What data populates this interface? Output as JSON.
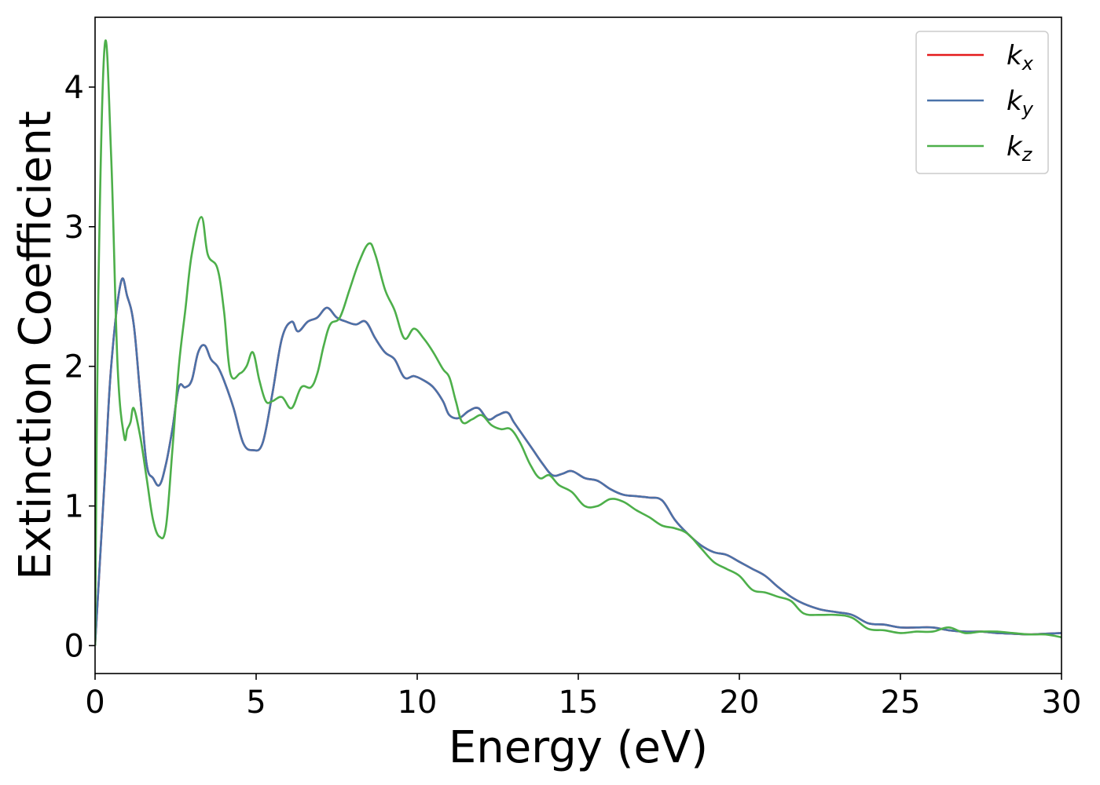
{
  "chart_data": {
    "type": "line",
    "title": "",
    "xlabel": "Energy (eV)",
    "ylabel": "Extinction Coefficient",
    "xlim": [
      0,
      30
    ],
    "ylim": [
      -0.2,
      4.5
    ],
    "xticks": [
      0,
      5,
      10,
      15,
      20,
      25,
      30
    ],
    "yticks": [
      0,
      1,
      2,
      3,
      4
    ],
    "grid": false,
    "legend_position": "top-right",
    "series": [
      {
        "name": "kx",
        "label_main": "k",
        "label_sub": "x",
        "color": "#e41a1c",
        "x": [
          0,
          0.3,
          0.5,
          0.8,
          1.0,
          1.2,
          1.4,
          1.6,
          1.8,
          2.0,
          2.2,
          2.4,
          2.6,
          2.8,
          3.0,
          3.2,
          3.4,
          3.6,
          3.8,
          4.0,
          4.3,
          4.6,
          4.9,
          5.2,
          5.5,
          5.8,
          6.1,
          6.3,
          6.6,
          6.9,
          7.2,
          7.5,
          7.8,
          8.1,
          8.4,
          8.7,
          9.0,
          9.3,
          9.6,
          9.9,
          10.2,
          10.5,
          10.8,
          11.0,
          11.3,
          11.6,
          11.9,
          12.2,
          12.5,
          12.8,
          13.0,
          13.3,
          13.6,
          13.9,
          14.2,
          14.5,
          14.8,
          15.2,
          15.6,
          16.0,
          16.4,
          16.8,
          17.2,
          17.6,
          18.0,
          18.4,
          18.8,
          19.2,
          19.6,
          20.0,
          20.4,
          20.8,
          21.2,
          21.6,
          22.0,
          22.5,
          23.0,
          23.5,
          24.0,
          24.5,
          25.0,
          25.5,
          26.0,
          26.5,
          27.0,
          27.5,
          28.0,
          28.5,
          29.0,
          29.5,
          30.0
        ],
        "y": [
          0,
          1.2,
          2.0,
          2.6,
          2.5,
          2.3,
          1.8,
          1.3,
          1.2,
          1.15,
          1.3,
          1.55,
          1.85,
          1.85,
          1.9,
          2.1,
          2.15,
          2.05,
          2.0,
          1.9,
          1.7,
          1.45,
          1.4,
          1.45,
          1.8,
          2.2,
          2.32,
          2.25,
          2.32,
          2.35,
          2.42,
          2.35,
          2.32,
          2.3,
          2.32,
          2.2,
          2.1,
          2.05,
          1.92,
          1.93,
          1.9,
          1.85,
          1.75,
          1.65,
          1.63,
          1.68,
          1.7,
          1.62,
          1.65,
          1.67,
          1.6,
          1.5,
          1.4,
          1.3,
          1.22,
          1.23,
          1.25,
          1.2,
          1.18,
          1.12,
          1.08,
          1.07,
          1.06,
          1.04,
          0.9,
          0.8,
          0.72,
          0.67,
          0.65,
          0.6,
          0.55,
          0.5,
          0.42,
          0.35,
          0.3,
          0.26,
          0.24,
          0.22,
          0.16,
          0.15,
          0.13,
          0.13,
          0.13,
          0.11,
          0.1,
          0.1,
          0.09,
          0.085,
          0.08,
          0.085,
          0.09
        ]
      },
      {
        "name": "ky",
        "label_main": "k",
        "label_sub": "y",
        "color": "#4a72a9",
        "x": [
          0,
          0.3,
          0.5,
          0.8,
          1.0,
          1.2,
          1.4,
          1.6,
          1.8,
          2.0,
          2.2,
          2.4,
          2.6,
          2.8,
          3.0,
          3.2,
          3.4,
          3.6,
          3.8,
          4.0,
          4.3,
          4.6,
          4.9,
          5.2,
          5.5,
          5.8,
          6.1,
          6.3,
          6.6,
          6.9,
          7.2,
          7.5,
          7.8,
          8.1,
          8.4,
          8.7,
          9.0,
          9.3,
          9.6,
          9.9,
          10.2,
          10.5,
          10.8,
          11.0,
          11.3,
          11.6,
          11.9,
          12.2,
          12.5,
          12.8,
          13.0,
          13.3,
          13.6,
          13.9,
          14.2,
          14.5,
          14.8,
          15.2,
          15.6,
          16.0,
          16.4,
          16.8,
          17.2,
          17.6,
          18.0,
          18.4,
          18.8,
          19.2,
          19.6,
          20.0,
          20.4,
          20.8,
          21.2,
          21.6,
          22.0,
          22.5,
          23.0,
          23.5,
          24.0,
          24.5,
          25.0,
          25.5,
          26.0,
          26.5,
          27.0,
          27.5,
          28.0,
          28.5,
          29.0,
          29.5,
          30.0
        ],
        "y": [
          0,
          1.2,
          2.0,
          2.6,
          2.5,
          2.3,
          1.8,
          1.3,
          1.2,
          1.15,
          1.3,
          1.55,
          1.85,
          1.85,
          1.9,
          2.1,
          2.15,
          2.05,
          2.0,
          1.9,
          1.7,
          1.45,
          1.4,
          1.45,
          1.8,
          2.2,
          2.32,
          2.25,
          2.32,
          2.35,
          2.42,
          2.35,
          2.32,
          2.3,
          2.32,
          2.2,
          2.1,
          2.05,
          1.92,
          1.93,
          1.9,
          1.85,
          1.75,
          1.65,
          1.63,
          1.68,
          1.7,
          1.62,
          1.65,
          1.67,
          1.6,
          1.5,
          1.4,
          1.3,
          1.22,
          1.23,
          1.25,
          1.2,
          1.18,
          1.12,
          1.08,
          1.07,
          1.06,
          1.04,
          0.9,
          0.8,
          0.72,
          0.67,
          0.65,
          0.6,
          0.55,
          0.5,
          0.42,
          0.35,
          0.3,
          0.26,
          0.24,
          0.22,
          0.16,
          0.15,
          0.13,
          0.13,
          0.13,
          0.11,
          0.1,
          0.1,
          0.09,
          0.085,
          0.08,
          0.085,
          0.09
        ]
      },
      {
        "name": "kz",
        "label_main": "k",
        "label_sub": "z",
        "color": "#4daf4a",
        "x": [
          0,
          0.1,
          0.3,
          0.5,
          0.7,
          0.9,
          1.0,
          1.1,
          1.2,
          1.4,
          1.6,
          1.8,
          2.0,
          2.2,
          2.4,
          2.6,
          2.8,
          3.0,
          3.3,
          3.5,
          3.8,
          4.0,
          4.2,
          4.5,
          4.7,
          4.9,
          5.1,
          5.3,
          5.5,
          5.8,
          6.1,
          6.4,
          6.7,
          6.9,
          7.1,
          7.3,
          7.6,
          7.9,
          8.2,
          8.5,
          8.7,
          9.0,
          9.3,
          9.6,
          9.9,
          10.2,
          10.5,
          10.8,
          11.0,
          11.2,
          11.4,
          11.7,
          12.0,
          12.3,
          12.6,
          12.9,
          13.2,
          13.5,
          13.8,
          14.1,
          14.4,
          14.8,
          15.2,
          15.6,
          16.0,
          16.4,
          16.8,
          17.2,
          17.6,
          18.0,
          18.4,
          18.8,
          19.2,
          19.6,
          20.0,
          20.4,
          20.8,
          21.2,
          21.6,
          22.0,
          22.5,
          23.0,
          23.5,
          24.0,
          24.5,
          25.0,
          25.5,
          26.0,
          26.5,
          27.0,
          27.5,
          28.0,
          28.5,
          29.0,
          29.5,
          30.0
        ],
        "y": [
          0,
          2.5,
          4.3,
          3.5,
          2.0,
          1.5,
          1.55,
          1.6,
          1.7,
          1.5,
          1.2,
          0.9,
          0.78,
          0.85,
          1.4,
          2.0,
          2.4,
          2.8,
          3.07,
          2.8,
          2.7,
          2.4,
          1.95,
          1.95,
          2.0,
          2.1,
          1.9,
          1.75,
          1.75,
          1.78,
          1.7,
          1.85,
          1.85,
          1.95,
          2.15,
          2.3,
          2.35,
          2.55,
          2.75,
          2.88,
          2.8,
          2.55,
          2.4,
          2.2,
          2.27,
          2.2,
          2.1,
          1.98,
          1.92,
          1.75,
          1.6,
          1.62,
          1.65,
          1.58,
          1.55,
          1.55,
          1.45,
          1.3,
          1.2,
          1.22,
          1.15,
          1.1,
          1.0,
          1.0,
          1.05,
          1.03,
          0.97,
          0.92,
          0.86,
          0.84,
          0.8,
          0.7,
          0.6,
          0.55,
          0.5,
          0.4,
          0.38,
          0.35,
          0.32,
          0.23,
          0.22,
          0.22,
          0.2,
          0.12,
          0.11,
          0.09,
          0.1,
          0.1,
          0.13,
          0.09,
          0.1,
          0.1,
          0.09,
          0.08,
          0.08,
          0.06
        ]
      }
    ]
  }
}
